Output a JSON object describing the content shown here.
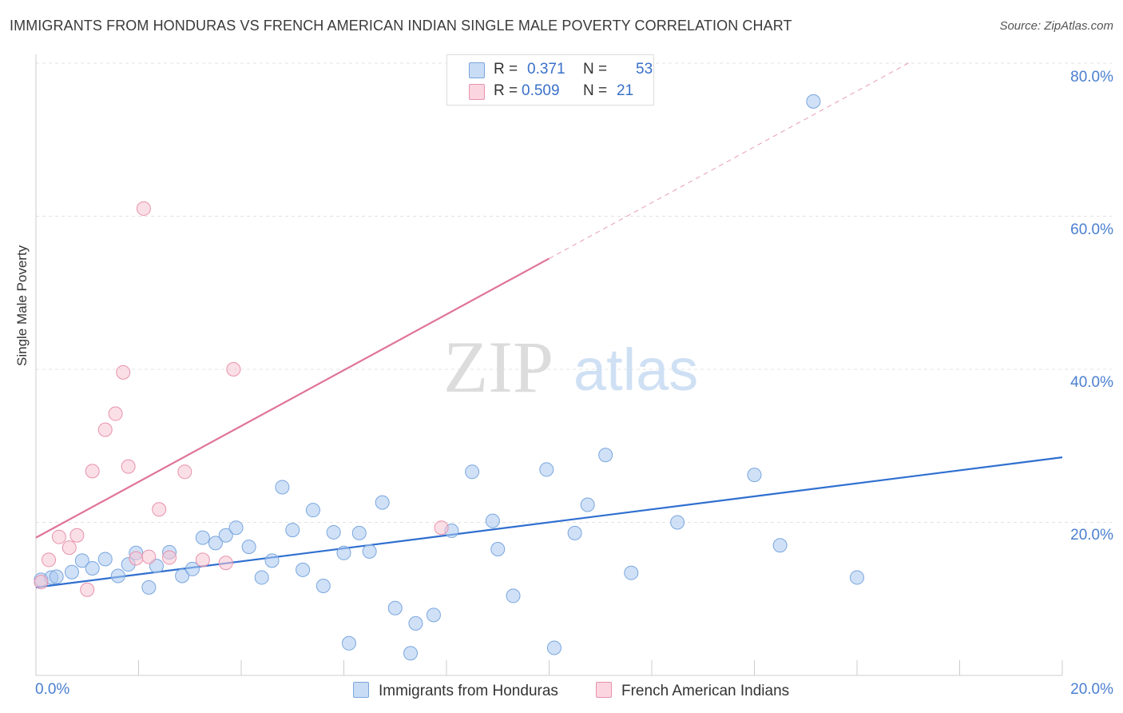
{
  "header": {
    "title": "IMMIGRANTS FROM HONDURAS VS FRENCH AMERICAN INDIAN SINGLE MALE POVERTY CORRELATION CHART",
    "source": "Source: ZipAtlas.com"
  },
  "watermark": {
    "zip": "ZIP",
    "atlas": "atlas"
  },
  "legend": {
    "rows": [
      {
        "r_label": "R =",
        "r_value": "0.371",
        "n_label": "N =",
        "n_value": "53",
        "color": "#aac8f0",
        "border": "#6f9edc"
      },
      {
        "r_label": "R =",
        "r_value": "0.509",
        "n_label": "N =",
        "n_value": "21",
        "color": "#f8c4d4",
        "border": "#e88aa6"
      }
    ]
  },
  "chart_data": {
    "type": "scatter",
    "title": "IMMIGRANTS FROM HONDURAS VS FRENCH AMERICAN INDIAN SINGLE MALE POVERTY CORRELATION CHART",
    "xlabel": "",
    "ylabel": "Single Male Poverty",
    "xlim": [
      0,
      20
    ],
    "ylim": [
      0,
      80
    ],
    "x_ticks_labels": [
      "0.0%",
      "20.0%"
    ],
    "y_ticks": [
      20,
      40,
      60,
      80
    ],
    "y_tick_labels": [
      "20.0%",
      "40.0%",
      "60.0%",
      "80.0%"
    ],
    "grid": true,
    "legend_position": "top-center",
    "series": [
      {
        "name": "Immigrants from Honduras",
        "color": "#aac8f0",
        "edge": "#7aa6de",
        "trend_color": "#2f6fd0",
        "trend": {
          "x0": 0,
          "y0": 11.5,
          "x1": 20,
          "y1": 28.5,
          "dashed_from": null
        },
        "points": [
          [
            0.1,
            12.5
          ],
          [
            0.3,
            12.8
          ],
          [
            0.4,
            12.9
          ],
          [
            0.7,
            13.5
          ],
          [
            0.9,
            15.0
          ],
          [
            1.1,
            14.0
          ],
          [
            1.35,
            15.2
          ],
          [
            1.6,
            13.0
          ],
          [
            1.8,
            14.5
          ],
          [
            1.95,
            16.0
          ],
          [
            2.2,
            11.5
          ],
          [
            2.35,
            14.3
          ],
          [
            2.6,
            16.1
          ],
          [
            2.85,
            13.0
          ],
          [
            3.05,
            13.9
          ],
          [
            3.25,
            18.0
          ],
          [
            3.5,
            17.3
          ],
          [
            3.7,
            18.3
          ],
          [
            3.9,
            19.3
          ],
          [
            4.15,
            16.8
          ],
          [
            4.4,
            12.8
          ],
          [
            4.6,
            15.0
          ],
          [
            4.8,
            24.6
          ],
          [
            5.0,
            19.0
          ],
          [
            5.2,
            13.8
          ],
          [
            5.4,
            21.6
          ],
          [
            5.6,
            11.7
          ],
          [
            5.8,
            18.7
          ],
          [
            6.0,
            16.0
          ],
          [
            6.1,
            4.2
          ],
          [
            6.3,
            18.6
          ],
          [
            6.5,
            16.2
          ],
          [
            6.75,
            22.6
          ],
          [
            7.0,
            8.8
          ],
          [
            7.3,
            2.9
          ],
          [
            7.4,
            6.8
          ],
          [
            7.75,
            7.9
          ],
          [
            8.1,
            18.9
          ],
          [
            8.5,
            26.6
          ],
          [
            8.9,
            20.2
          ],
          [
            9.0,
            16.5
          ],
          [
            9.3,
            10.4
          ],
          [
            9.95,
            26.9
          ],
          [
            10.1,
            3.6
          ],
          [
            10.5,
            18.6
          ],
          [
            10.75,
            22.3
          ],
          [
            11.1,
            28.8
          ],
          [
            11.6,
            13.4
          ],
          [
            12.5,
            20.0
          ],
          [
            14.0,
            26.2
          ],
          [
            14.5,
            17.0
          ],
          [
            15.15,
            75.0
          ],
          [
            16.0,
            12.8
          ]
        ]
      },
      {
        "name": "French American Indians",
        "color": "#f8c4d4",
        "edge": "#e892ac",
        "trend_color": "#e0739a",
        "trend": {
          "x0": 0,
          "y0": 18.0,
          "x1": 17.0,
          "y1": 80.0,
          "dashed_from": 10.0
        },
        "points": [
          [
            0.1,
            12.2
          ],
          [
            0.25,
            15.1
          ],
          [
            0.45,
            18.1
          ],
          [
            0.65,
            16.7
          ],
          [
            0.8,
            18.3
          ],
          [
            1.0,
            11.2
          ],
          [
            1.1,
            26.7
          ],
          [
            1.35,
            32.1
          ],
          [
            1.55,
            34.2
          ],
          [
            1.7,
            39.6
          ],
          [
            1.8,
            27.3
          ],
          [
            1.95,
            15.3
          ],
          [
            2.1,
            61.0
          ],
          [
            2.2,
            15.5
          ],
          [
            2.4,
            21.7
          ],
          [
            2.6,
            15.4
          ],
          [
            2.9,
            26.6
          ],
          [
            3.25,
            15.1
          ],
          [
            3.7,
            14.7
          ],
          [
            3.85,
            40.0
          ],
          [
            7.9,
            19.3
          ]
        ]
      }
    ]
  }
}
